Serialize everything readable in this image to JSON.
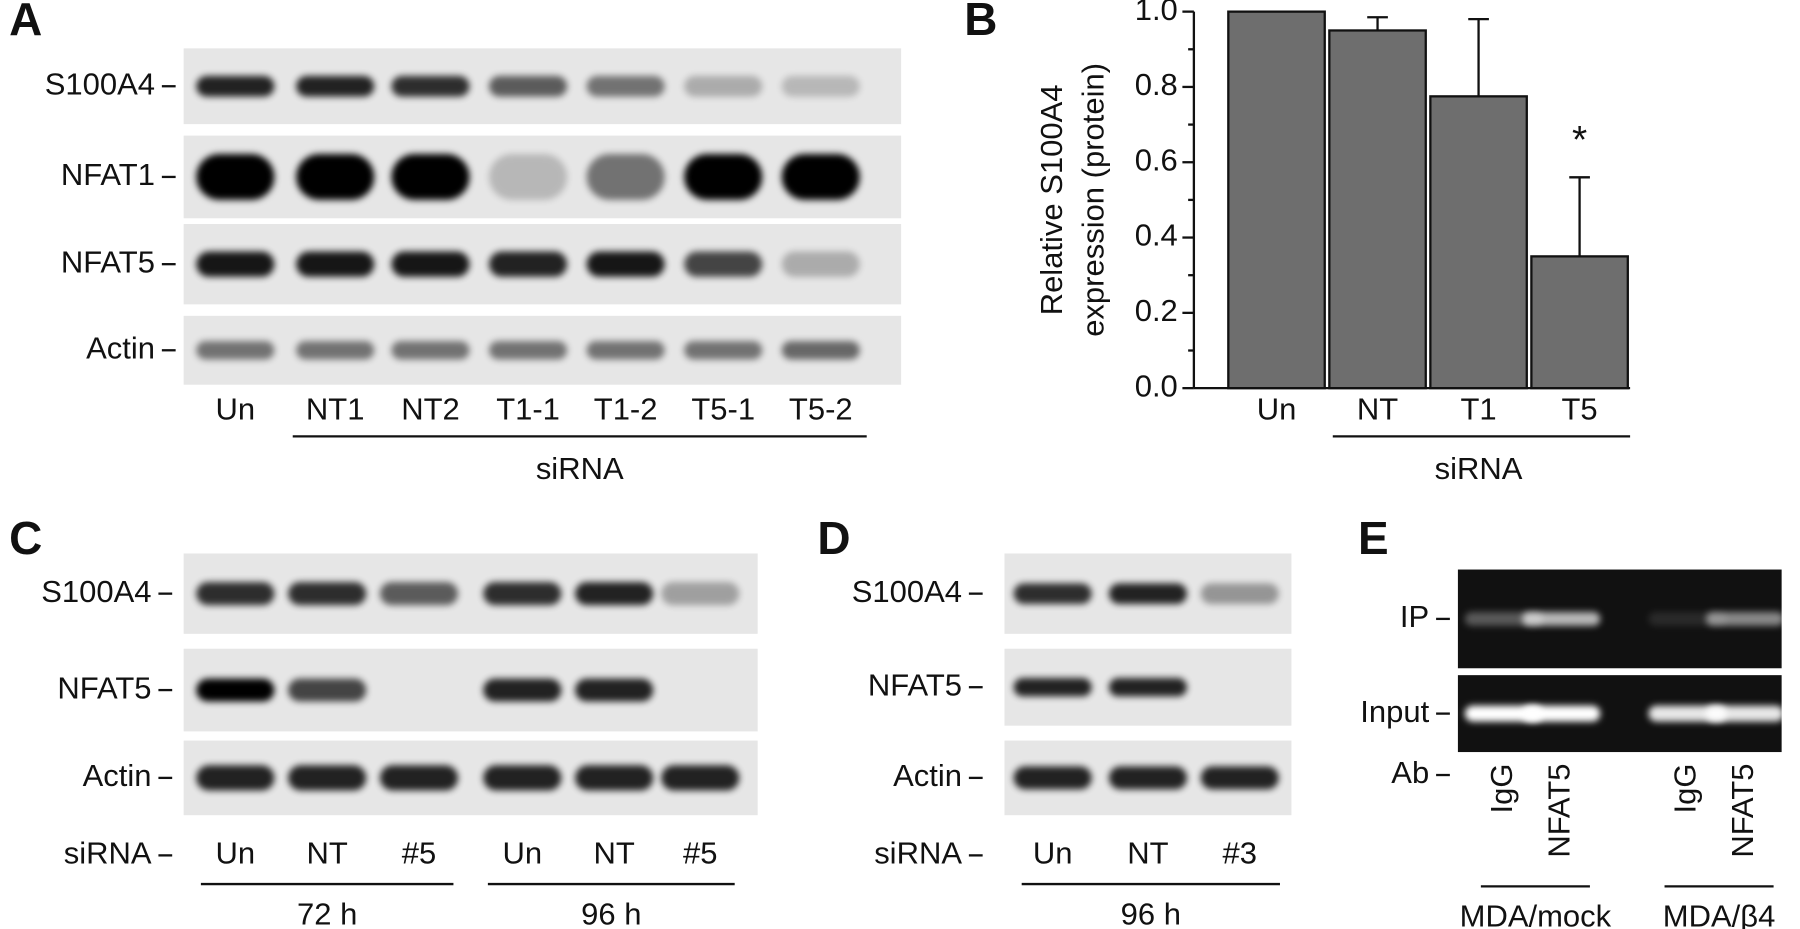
{
  "panel_labels": [
    "A",
    "B",
    "C",
    "D",
    "E"
  ],
  "panel_a": {
    "rows": [
      "S100A4",
      "NFAT1",
      "NFAT5",
      "Actin"
    ],
    "lanes": [
      "Un",
      "NT1",
      "NT2",
      "T1-1",
      "T1-2",
      "T5-1",
      "T5-2"
    ],
    "group_label": "siRNA"
  },
  "chart_data": {
    "type": "bar",
    "y_label": [
      "Relative S100A4",
      "expression (protein)"
    ],
    "categories": [
      "Un",
      "NT",
      "T1",
      "T5"
    ],
    "values": [
      1.0,
      0.95,
      0.775,
      0.35
    ],
    "errors": [
      null,
      0.035,
      0.205,
      0.21
    ],
    "color": "#6e6e6e",
    "ylim": [
      0,
      1
    ],
    "yticks": [
      {
        "value": 0,
        "label": "0.0"
      },
      {
        "value": 0.2,
        "label": "0.2"
      },
      {
        "value": 0.4,
        "label": "0.4"
      },
      {
        "value": 0.6,
        "label": "0.6"
      },
      {
        "value": 0.8,
        "label": "0.8"
      },
      {
        "value": 1,
        "label": "1.0"
      }
    ],
    "annotations": [
      "*"
    ],
    "group_label": "siRNA"
  },
  "panel_c": {
    "rows": [
      "S100A4",
      "NFAT5",
      "Actin"
    ],
    "lane_header": "siRNA",
    "lanes": [
      "Un",
      "NT",
      "#5",
      "Un",
      "NT",
      "#5"
    ],
    "groups": [
      "72 h",
      "96 h"
    ]
  },
  "panel_d": {
    "rows": [
      "S100A4",
      "NFAT5",
      "Actin"
    ],
    "lane_header": "siRNA",
    "lanes": [
      "Un",
      "NT",
      "#3"
    ],
    "groups": [
      "96 h"
    ]
  },
  "panel_e": {
    "rows": [
      "IP",
      "Input"
    ],
    "lane_header": "Ab",
    "lanes": [
      "IgG",
      "NFAT5",
      "IgG",
      "NFAT5"
    ],
    "groups": [
      "MDA/mock",
      "MDA/β4"
    ]
  }
}
